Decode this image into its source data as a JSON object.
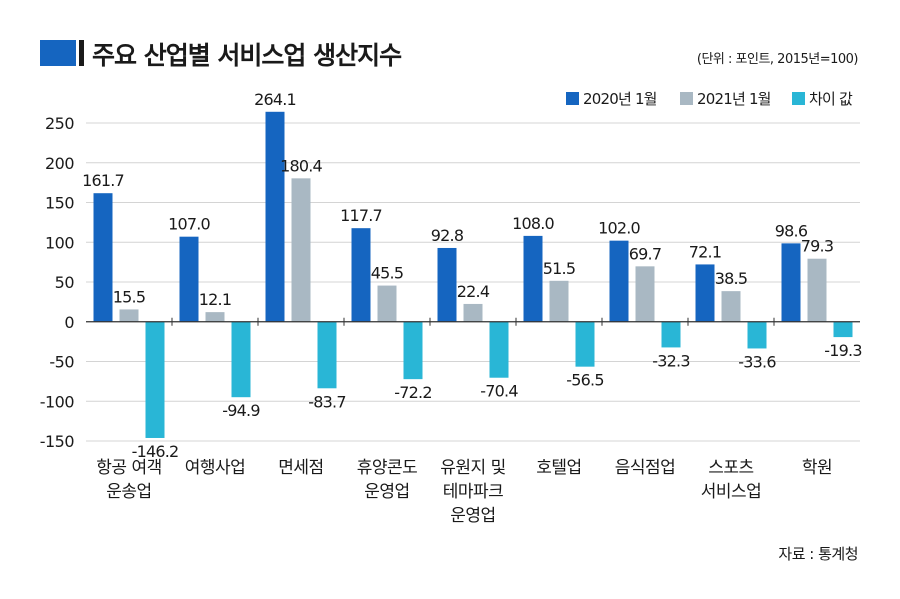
{
  "header": {
    "title": "주요 산업별 서비스업 생산지수",
    "unit": "(단위 : 포인트, 2015년=100)"
  },
  "footer": {
    "source": "자료 : 통계청"
  },
  "chart_data": {
    "type": "bar",
    "title": "주요 산업별 서비스업 생산지수",
    "ylim": [
      -150,
      250
    ],
    "yticks": [
      250,
      200,
      150,
      100,
      50,
      0,
      -50,
      -100,
      -150
    ],
    "grid": true,
    "legend_position": "top-right",
    "categories": [
      [
        "항공 여객",
        "운송업"
      ],
      [
        "여행사업"
      ],
      [
        "면세점"
      ],
      [
        "휴양콘도",
        "운영업"
      ],
      [
        "유원지 및",
        "테마파크",
        "운영업"
      ],
      [
        "호텔업"
      ],
      [
        "음식점업"
      ],
      [
        "스포츠",
        "서비스업"
      ],
      [
        "학원"
      ]
    ],
    "series": [
      {
        "name": "2020년 1월",
        "color": "#1565c0",
        "values": [
          161.7,
          107.0,
          264.1,
          117.7,
          92.8,
          108.0,
          102.0,
          72.1,
          98.6
        ],
        "labels": [
          "161.7",
          "107.0",
          "264.1",
          "117.7",
          "92.8",
          "108.0",
          "102.0",
          "72.1",
          "98.6"
        ]
      },
      {
        "name": "2021년 1월",
        "color": "#a9b8c3",
        "values": [
          15.5,
          12.1,
          180.4,
          45.5,
          22.4,
          51.5,
          69.7,
          38.5,
          79.3
        ],
        "labels": [
          "15.5",
          "12.1",
          "180.4",
          "45.5",
          "22.4",
          "51.5",
          "69.7",
          "38.5",
          "79.3"
        ]
      },
      {
        "name": "차이 값",
        "color": "#29b6d6",
        "values": [
          -146.2,
          -94.9,
          -83.7,
          -72.2,
          -70.4,
          -56.5,
          -32.3,
          -33.6,
          -19.3
        ],
        "labels": [
          "-146.2",
          "-94.9",
          "-83.7",
          "-72.2",
          "-70.4",
          "-56.5",
          "-32.3",
          "-33.6",
          "-19.3"
        ]
      }
    ]
  }
}
